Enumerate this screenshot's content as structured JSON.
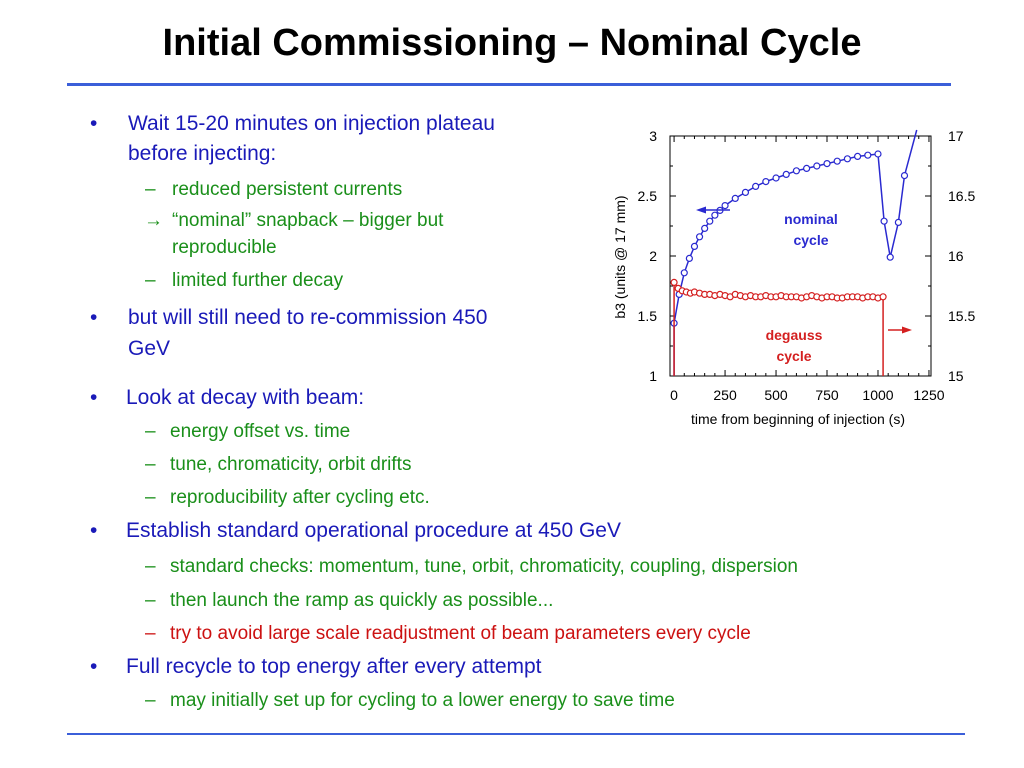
{
  "slide": {
    "title": "Initial Commissioning – Nominal Cycle"
  },
  "bullets": [
    {
      "marker": "•",
      "lines": [
        "Wait 15-20 minutes on injection plateau",
        "before injecting:"
      ]
    },
    {
      "marker": "–",
      "lines": [
        "reduced persistent currents"
      ]
    },
    {
      "marker": "→",
      "lines": [
        "“nominal” snapback – bigger but",
        "reproducible"
      ]
    },
    {
      "marker": "–",
      "lines": [
        "limited further decay"
      ]
    },
    {
      "marker": "•",
      "lines": [
        "but will still need to re-commission 450",
        "GeV"
      ]
    },
    {
      "marker": "•",
      "lines": [
        "Look at decay with beam:"
      ]
    },
    {
      "marker": "–",
      "lines": [
        "energy offset vs. time"
      ]
    },
    {
      "marker": "–",
      "lines": [
        "tune, chromaticity, orbit drifts"
      ]
    },
    {
      "marker": "–",
      "lines": [
        "reproducibility after cycling etc."
      ]
    },
    {
      "marker": "•",
      "lines": [
        "Establish standard operational procedure at 450 GeV"
      ]
    },
    {
      "marker": "–",
      "lines": [
        "standard checks: momentum, tune, orbit, chromaticity, coupling, dispersion"
      ]
    },
    {
      "marker": "–",
      "lines": [
        "then launch the ramp as quickly as possible..."
      ]
    },
    {
      "marker": "–",
      "lines": [
        "try to avoid large scale readjustment of beam parameters every cycle"
      ]
    },
    {
      "marker": "•",
      "lines": [
        "Full recycle to top energy after every attempt"
      ]
    },
    {
      "marker": "–",
      "lines": [
        "may initially set up for cycling to a lower energy to save time"
      ]
    }
  ],
  "colors": {
    "primary_text": "#1a1ab8",
    "secondary_text": "#1a8f1a",
    "warning_text": "#cc1111",
    "rule": "#3b5fd9"
  },
  "chart_data": {
    "type": "scatter",
    "xlabel": "time from beginning of injection (s)",
    "ylabel": "b3 (units @ 17 mm)",
    "xlim": [
      -20,
      1260
    ],
    "ylim": [
      1,
      3
    ],
    "y2lim": [
      15,
      17
    ],
    "x_ticks": [
      "0",
      "250",
      "500",
      "750",
      "1000",
      "1250"
    ],
    "y_ticks": [
      "1",
      "1.5",
      "2",
      "2.5",
      "3"
    ],
    "y2_ticks": [
      "15",
      "15.5",
      "16",
      "16.5",
      "17"
    ],
    "grid": false,
    "series": [
      {
        "name": "nominal cycle",
        "axis": "left",
        "color": "#2a2ad0",
        "x": [
          0,
          25,
          50,
          75,
          100,
          125,
          150,
          175,
          200,
          225,
          250,
          300,
          350,
          400,
          450,
          500,
          550,
          600,
          650,
          700,
          750,
          800,
          850,
          900,
          950,
          1000,
          1030,
          1060,
          1100,
          1130
        ],
        "y": [
          1.44,
          1.68,
          1.86,
          1.98,
          2.08,
          2.16,
          2.23,
          2.29,
          2.34,
          2.38,
          2.42,
          2.48,
          2.53,
          2.58,
          2.62,
          2.65,
          2.68,
          2.71,
          2.73,
          2.75,
          2.77,
          2.79,
          2.81,
          2.83,
          2.84,
          2.85,
          2.29,
          1.99,
          2.28,
          2.67
        ]
      },
      {
        "name": "degauss cycle",
        "axis": "right",
        "color": "#d42020",
        "x": [
          0,
          20,
          40,
          60,
          80,
          100,
          125,
          150,
          175,
          200,
          225,
          250,
          275,
          300,
          325,
          350,
          375,
          400,
          425,
          450,
          475,
          500,
          525,
          550,
          575,
          600,
          625,
          650,
          675,
          700,
          725,
          750,
          775,
          800,
          825,
          850,
          875,
          900,
          925,
          950,
          975,
          1000,
          1025
        ],
        "y": [
          15.78,
          15.73,
          15.71,
          15.7,
          15.69,
          15.7,
          15.69,
          15.68,
          15.68,
          15.67,
          15.68,
          15.67,
          15.66,
          15.68,
          15.67,
          15.66,
          15.67,
          15.66,
          15.66,
          15.67,
          15.66,
          15.66,
          15.67,
          15.66,
          15.66,
          15.66,
          15.65,
          15.66,
          15.67,
          15.66,
          15.65,
          15.66,
          15.66,
          15.65,
          15.65,
          15.66,
          15.66,
          15.66,
          15.65,
          15.66,
          15.66,
          15.65,
          15.66
        ]
      }
    ],
    "annotations": [
      {
        "text": [
          "nominal",
          "cycle"
        ],
        "color": "#2a2ad0",
        "arrow": "left"
      },
      {
        "text": [
          "degauss",
          "cycle"
        ],
        "color": "#d42020",
        "arrow": "right"
      }
    ]
  }
}
